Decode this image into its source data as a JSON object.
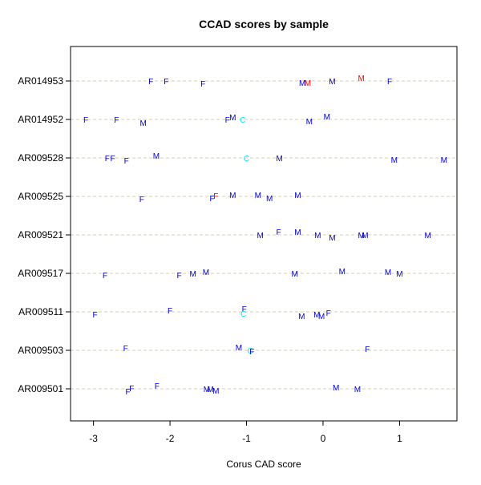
{
  "chart_data": {
    "type": "scatter",
    "title": "CCAD scores by sample",
    "xlabel": "Corus CAD score",
    "ylabel": "",
    "xlim": [
      -3.3,
      1.75
    ],
    "x_ticks": [
      -3,
      -2,
      -1,
      0,
      1
    ],
    "grid": "dashed horizontal lines at each sample",
    "categories": [
      "AR009501",
      "AR009503",
      "AR009511",
      "AR009517",
      "AR009521",
      "AR009525",
      "AR009528",
      "AR014952",
      "AR014953"
    ],
    "point_colors": {
      "M": "#0000cc",
      "F": "#0000cc",
      "C": "#00e5ee",
      "M_red": "#ff0000",
      "F_red": "#ff0000"
    },
    "points": [
      {
        "sample": "AR014953",
        "x": -2.25,
        "label": "F",
        "color": "F"
      },
      {
        "sample": "AR014953",
        "x": -2.05,
        "label": "F",
        "color": "F"
      },
      {
        "sample": "AR014953",
        "x": -1.57,
        "label": "F",
        "color": "F",
        "dy": 3
      },
      {
        "sample": "AR014953",
        "x": -0.27,
        "label": "M",
        "color": "M",
        "dy": 2
      },
      {
        "sample": "AR014953",
        "x": -0.2,
        "label": "M",
        "color": "M_red",
        "dy": 2
      },
      {
        "sample": "AR014953",
        "x": 0.12,
        "label": "M",
        "color": "M"
      },
      {
        "sample": "AR014953",
        "x": 0.5,
        "label": "M",
        "color": "M_red",
        "dy": -4
      },
      {
        "sample": "AR014953",
        "x": 0.87,
        "label": "F",
        "color": "F"
      },
      {
        "sample": "AR014952",
        "x": -3.1,
        "label": "F",
        "color": "F"
      },
      {
        "sample": "AR014952",
        "x": -2.7,
        "label": "F",
        "color": "F"
      },
      {
        "sample": "AR014952",
        "x": -2.35,
        "label": "M",
        "color": "M",
        "dy": 4
      },
      {
        "sample": "AR014952",
        "x": -1.25,
        "label": "F",
        "color": "F"
      },
      {
        "sample": "AR014952",
        "x": -1.18,
        "label": "M",
        "color": "M",
        "dy": -3
      },
      {
        "sample": "AR014952",
        "x": -1.05,
        "label": "C",
        "color": "C"
      },
      {
        "sample": "AR014952",
        "x": -0.18,
        "label": "M",
        "color": "M",
        "dy": 2
      },
      {
        "sample": "AR014952",
        "x": 0.05,
        "label": "M",
        "color": "M",
        "dy": -4
      },
      {
        "sample": "AR009528",
        "x": -2.82,
        "label": "F",
        "color": "F"
      },
      {
        "sample": "AR009528",
        "x": -2.75,
        "label": "F",
        "color": "F"
      },
      {
        "sample": "AR009528",
        "x": -2.57,
        "label": "F",
        "color": "F",
        "dy": 3
      },
      {
        "sample": "AR009528",
        "x": -2.18,
        "label": "M",
        "color": "M",
        "dy": -3
      },
      {
        "sample": "AR009528",
        "x": -1.0,
        "label": "C",
        "color": "C"
      },
      {
        "sample": "AR009528",
        "x": -0.57,
        "label": "M",
        "color": "M"
      },
      {
        "sample": "AR009528",
        "x": 0.93,
        "label": "M",
        "color": "M",
        "dy": 2
      },
      {
        "sample": "AR009528",
        "x": 1.58,
        "label": "M",
        "color": "M",
        "dy": 2
      },
      {
        "sample": "AR009525",
        "x": -2.37,
        "label": "F",
        "color": "F",
        "dy": 3
      },
      {
        "sample": "AR009525",
        "x": -1.45,
        "label": "F",
        "color": "F",
        "dy": 2
      },
      {
        "sample": "AR009525",
        "x": -1.4,
        "label": "F",
        "color": "F_red",
        "dy": -1
      },
      {
        "sample": "AR009525",
        "x": -1.18,
        "label": "M",
        "color": "M",
        "dy": -2
      },
      {
        "sample": "AR009525",
        "x": -0.85,
        "label": "M",
        "color": "M",
        "dy": -2
      },
      {
        "sample": "AR009525",
        "x": -0.7,
        "label": "M",
        "color": "M",
        "dy": 2
      },
      {
        "sample": "AR009525",
        "x": -0.33,
        "label": "M",
        "color": "M",
        "dy": -2
      },
      {
        "sample": "AR009521",
        "x": -0.82,
        "label": "M",
        "color": "M"
      },
      {
        "sample": "AR009521",
        "x": -0.58,
        "label": "F",
        "color": "F",
        "dy": -4
      },
      {
        "sample": "AR009521",
        "x": -0.33,
        "label": "M",
        "color": "M",
        "dy": -4
      },
      {
        "sample": "AR009521",
        "x": -0.07,
        "label": "M",
        "color": "M"
      },
      {
        "sample": "AR009521",
        "x": 0.12,
        "label": "M",
        "color": "M",
        "dy": 3
      },
      {
        "sample": "AR009521",
        "x": 0.5,
        "label": "M",
        "color": "M"
      },
      {
        "sample": "AR009521",
        "x": 0.55,
        "label": "M",
        "color": "M"
      },
      {
        "sample": "AR009521",
        "x": 1.37,
        "label": "M",
        "color": "M"
      },
      {
        "sample": "AR009517",
        "x": -2.85,
        "label": "F",
        "color": "F",
        "dy": 2
      },
      {
        "sample": "AR009517",
        "x": -1.88,
        "label": "F",
        "color": "F",
        "dy": 2
      },
      {
        "sample": "AR009517",
        "x": -1.7,
        "label": "M",
        "color": "M"
      },
      {
        "sample": "AR009517",
        "x": -1.53,
        "label": "M",
        "color": "M",
        "dy": -2
      },
      {
        "sample": "AR009517",
        "x": -0.37,
        "label": "M",
        "color": "M"
      },
      {
        "sample": "AR009517",
        "x": 0.25,
        "label": "M",
        "color": "M",
        "dy": -3
      },
      {
        "sample": "AR009517",
        "x": 0.85,
        "label": "M",
        "color": "M",
        "dy": -2
      },
      {
        "sample": "AR009517",
        "x": 1.0,
        "label": "M",
        "color": "M"
      },
      {
        "sample": "AR009511",
        "x": -2.98,
        "label": "F",
        "color": "F",
        "dy": 3
      },
      {
        "sample": "AR009511",
        "x": -2.0,
        "label": "F",
        "color": "F",
        "dy": -2
      },
      {
        "sample": "AR009511",
        "x": -1.03,
        "label": "F",
        "color": "F",
        "dy": -4
      },
      {
        "sample": "AR009511",
        "x": -1.04,
        "label": "C",
        "color": "C",
        "dy": 2
      },
      {
        "sample": "AR009511",
        "x": -0.28,
        "label": "M",
        "color": "M",
        "dy": 5
      },
      {
        "sample": "AR009511",
        "x": -0.08,
        "label": "M",
        "color": "M",
        "dy": 3
      },
      {
        "sample": "AR009511",
        "x": -0.02,
        "label": "M",
        "color": "M",
        "dy": 5
      },
      {
        "sample": "AR009511",
        "x": 0.07,
        "label": "F",
        "color": "F",
        "dy": 1
      },
      {
        "sample": "AR009503",
        "x": -2.58,
        "label": "F",
        "color": "F",
        "dy": -3
      },
      {
        "sample": "AR009503",
        "x": -1.1,
        "label": "M",
        "color": "M",
        "dy": -4
      },
      {
        "sample": "AR009503",
        "x": -0.95,
        "label": "C",
        "color": "C"
      },
      {
        "sample": "AR009503",
        "x": -0.93,
        "label": "F",
        "color": "F",
        "dy": 1
      },
      {
        "sample": "AR009503",
        "x": 0.58,
        "label": "F",
        "color": "F",
        "dy": -2
      },
      {
        "sample": "AR009501",
        "x": -2.55,
        "label": "F",
        "color": "F",
        "dy": 3
      },
      {
        "sample": "AR009501",
        "x": -2.5,
        "label": "F",
        "color": "F",
        "dy": -1
      },
      {
        "sample": "AR009501",
        "x": -2.17,
        "label": "F",
        "color": "F",
        "dy": -4
      },
      {
        "sample": "AR009501",
        "x": -1.52,
        "label": "M",
        "color": "M"
      },
      {
        "sample": "AR009501",
        "x": -1.47,
        "label": "M",
        "color": "M"
      },
      {
        "sample": "AR009501",
        "x": -1.4,
        "label": "M",
        "color": "M",
        "dy": 2
      },
      {
        "sample": "AR009501",
        "x": 0.17,
        "label": "M",
        "color": "M",
        "dy": -2
      },
      {
        "sample": "AR009501",
        "x": 0.45,
        "label": "M",
        "color": "M"
      }
    ]
  }
}
